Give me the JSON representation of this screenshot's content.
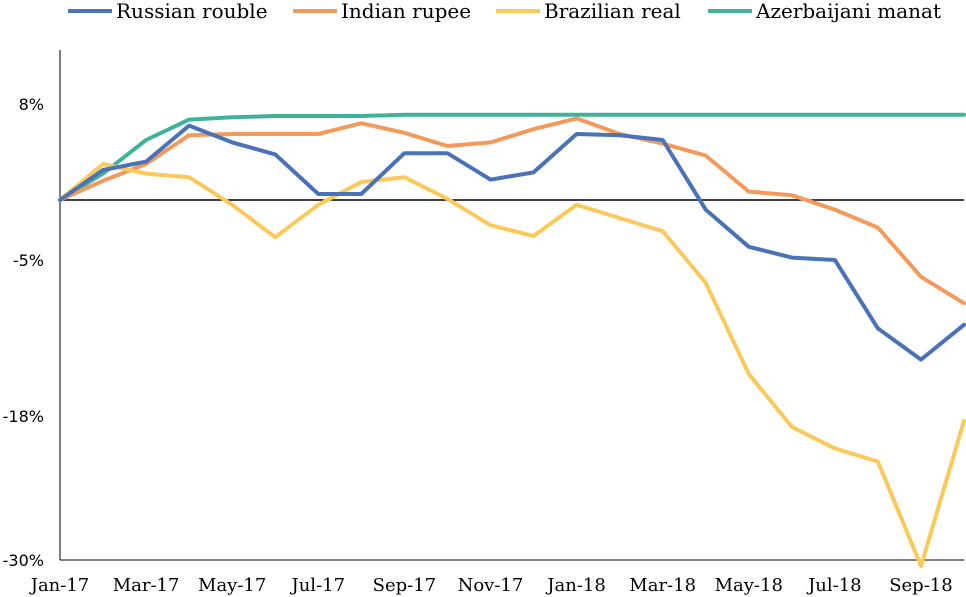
{
  "chart_data": {
    "type": "line",
    "title": "",
    "xlabel": "",
    "ylabel": "",
    "x": [
      "Jan-17",
      "Feb-17",
      "Mar-17",
      "Apr-17",
      "May-17",
      "Jun-17",
      "Jul-17",
      "Aug-17",
      "Sep-17",
      "Oct-17",
      "Nov-17",
      "Dec-17",
      "Jan-18",
      "Feb-18",
      "Mar-18",
      "Apr-18",
      "May-18",
      "Jun-18",
      "Jul-18",
      "Aug-18",
      "Sep-18",
      "Oct-18"
    ],
    "x_tick_labels": [
      "Jan-17",
      "Mar-17",
      "May-17",
      "Jul-17",
      "Sep-17",
      "Nov-17",
      "Jan-18",
      "Mar-18",
      "May-18",
      "Jul-18",
      "Sep-18"
    ],
    "y_ticks": [
      8,
      -5,
      -18,
      -30
    ],
    "y_tick_labels": [
      "8%",
      "-5%",
      "-18%",
      "-30%"
    ],
    "ylim": [
      -30,
      12.5
    ],
    "grid": false,
    "legend_position": "top",
    "series": [
      {
        "name": "Russian rouble",
        "color": "#4A72B8",
        "values": [
          0,
          2.5,
          3.2,
          6.2,
          4.8,
          3.8,
          0.5,
          0.5,
          3.9,
          3.9,
          1.7,
          2.3,
          5.5,
          5.4,
          5.0,
          -0.8,
          -3.9,
          -4.8,
          -5.0,
          -10.7,
          -13.3,
          -10.4
        ]
      },
      {
        "name": "Indian rupee",
        "color": "#F39A5B",
        "values": [
          0,
          1.6,
          3.0,
          5.4,
          5.5,
          5.5,
          5.5,
          6.4,
          5.6,
          4.5,
          4.8,
          5.9,
          6.8,
          5.5,
          4.7,
          3.7,
          0.7,
          0.4,
          -0.8,
          -2.3,
          -6.4,
          -8.6
        ]
      },
      {
        "name": "Brazilian real",
        "color": "#FBC95A",
        "values": [
          0,
          3.0,
          2.2,
          1.9,
          -0.4,
          -3.1,
          -0.4,
          1.5,
          1.9,
          0.1,
          -2.1,
          -3.0,
          -0.4,
          -1.5,
          -2.6,
          -6.9,
          -14.5,
          -18.9,
          -20.7,
          -21.8,
          -30.5,
          -18.4
        ]
      },
      {
        "name": "Azerbaijani manat",
        "color": "#3FB39A",
        "values": [
          0,
          2.2,
          5.0,
          6.7,
          6.9,
          7.0,
          7.0,
          7.0,
          7.1,
          7.1,
          7.1,
          7.1,
          7.1,
          7.1,
          7.1,
          7.1,
          7.1,
          7.1,
          7.1,
          7.1,
          7.1,
          7.1
        ]
      }
    ]
  }
}
